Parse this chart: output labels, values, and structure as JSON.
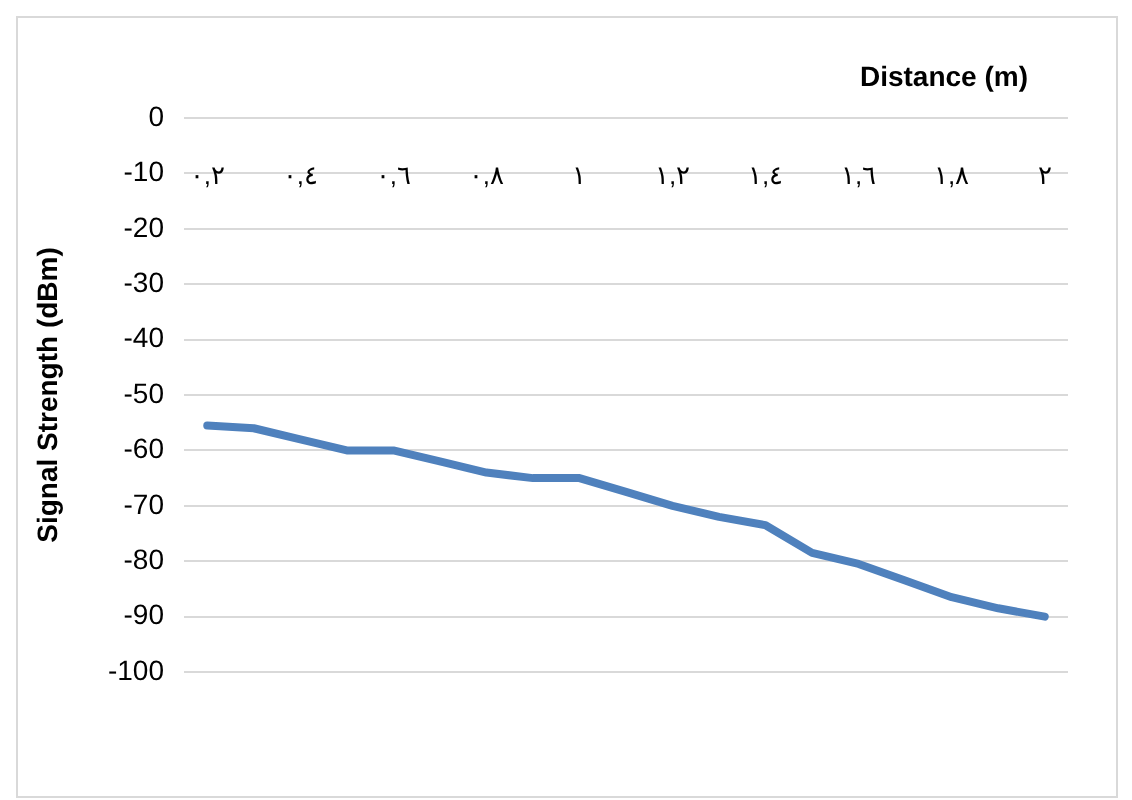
{
  "chart_data": {
    "type": "line",
    "xlabel": "Distance (m)",
    "ylabel": "Signal Strength (dBm)",
    "categories": [
      "٠,٢",
      null,
      "٠,٤",
      null,
      "٠,٦",
      null,
      "٠,٨",
      null,
      "١",
      null,
      "١,٢",
      null,
      "١,٤",
      null,
      "١,٦",
      null,
      "١,٨",
      null,
      "٢"
    ],
    "series": [
      {
        "color": "#4f81bd",
        "values": [
          -55.5,
          -56,
          -58,
          -60,
          -60,
          -62,
          -64,
          -65,
          -65,
          -67.5,
          -70,
          -72,
          -73.5,
          -78.5,
          -80.5,
          -83.5,
          -86.5,
          -88.5,
          -90
        ]
      }
    ],
    "ylim": [
      -100,
      0
    ],
    "yticks": [
      0,
      -10,
      -20,
      -30,
      -40,
      -50,
      -60,
      -70,
      -80,
      -90,
      -100
    ],
    "grid": "y",
    "legend": false,
    "marker": "none",
    "line_style": "solid"
  }
}
